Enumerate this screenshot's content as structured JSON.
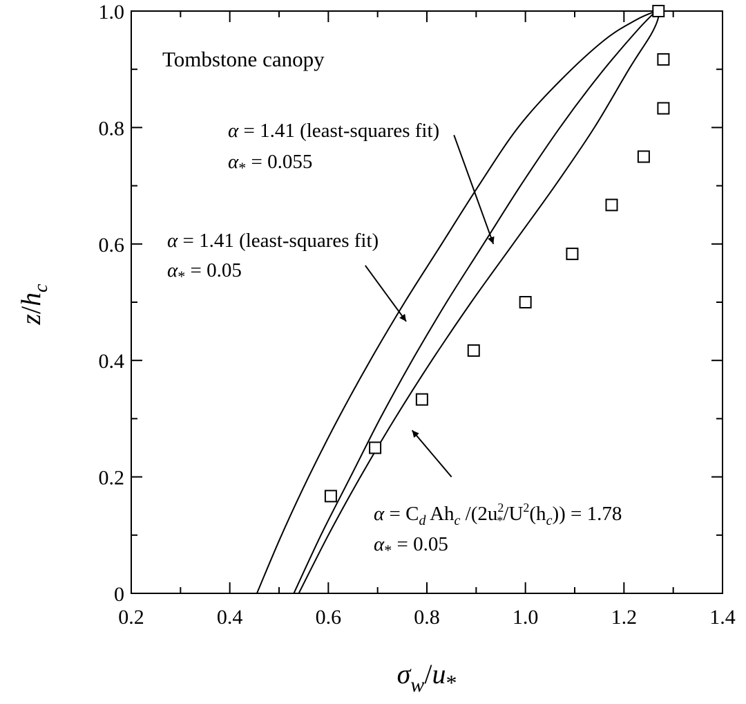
{
  "chart_data": {
    "type": "scatter",
    "title": "Tombstone canopy",
    "xlabel": {
      "main": "σ",
      "sub_w": "w",
      "sep": "/",
      "u": "u",
      "star": "*"
    },
    "ylabel": {
      "main": "z",
      "sep": "/",
      "h": "h",
      "sub": "c"
    },
    "xlim": [
      0.2,
      1.4
    ],
    "ylim": [
      0,
      1.0
    ],
    "xticks": [
      0.2,
      0.4,
      0.6,
      0.8,
      1.0,
      1.2,
      1.4
    ],
    "xtick_labels": [
      "0.2",
      "0.4",
      "0.6",
      "0.8",
      "1.0",
      "1.2",
      "1.4"
    ],
    "yticks": [
      0,
      0.2,
      0.4,
      0.6,
      0.8,
      1.0
    ],
    "ytick_labels": [
      "0",
      "0.2",
      "0.4",
      "0.6",
      "0.8",
      "1.0"
    ],
    "grid": false,
    "markers": {
      "x": [
        0.605,
        0.695,
        0.79,
        0.895,
        1.0,
        1.095,
        1.175,
        1.24,
        1.28,
        1.28,
        1.27
      ],
      "y": [
        0.167,
        0.25,
        0.333,
        0.417,
        0.5,
        0.583,
        0.667,
        0.75,
        0.833,
        0.917,
        1.0
      ]
    },
    "curves": [
      {
        "x": [
          0.455,
          0.505,
          0.56,
          0.62,
          0.685,
          0.755,
          0.83,
          0.905,
          0.985,
          1.07,
          1.16,
          1.225,
          1.265
        ],
        "y": [
          0.0,
          0.1,
          0.2,
          0.3,
          0.4,
          0.5,
          0.6,
          0.7,
          0.8,
          0.88,
          0.95,
          0.985,
          1.0
        ]
      },
      {
        "x": [
          0.53,
          0.585,
          0.645,
          0.705,
          0.77,
          0.84,
          0.915,
          0.99,
          1.07,
          1.15,
          1.225,
          1.265
        ],
        "y": [
          0.0,
          0.1,
          0.2,
          0.3,
          0.4,
          0.5,
          0.6,
          0.7,
          0.8,
          0.89,
          0.965,
          1.0
        ]
      },
      {
        "x": [
          0.54,
          0.6,
          0.665,
          0.735,
          0.81,
          0.89,
          0.975,
          1.06,
          1.14,
          1.21,
          1.255,
          1.27,
          1.265
        ],
        "y": [
          0.0,
          0.1,
          0.2,
          0.3,
          0.4,
          0.5,
          0.6,
          0.7,
          0.8,
          0.9,
          0.96,
          0.99,
          1.0
        ]
      }
    ],
    "annotations": [
      {
        "line1": {
          "sym": "α",
          "text": " = 1.41 (least-squares fit)"
        },
        "line2": {
          "sym": "α",
          "sub": "*",
          "text": " = 0.055"
        },
        "arrow_tail": [
          0.855,
          0.787
        ],
        "arrow_head": [
          0.935,
          0.6
        ]
      },
      {
        "line1": {
          "sym": "α",
          "text": " = 1.41 (least-squares fit)"
        },
        "line2": {
          "sym": "α",
          "sub": "*",
          "text": " = 0.05"
        },
        "arrow_tail": [
          0.675,
          0.563
        ],
        "arrow_head": [
          0.758,
          0.467
        ]
      },
      {
        "line1": {
          "sym": "α",
          "p1": " = C",
          "p1sub": "d",
          "p2": " Ah",
          "p2sub": "c",
          "p3": " /(2u",
          "p3sup": "2",
          "p3sub": "*",
          "p4": "/U",
          "p4sup": "2",
          "p5": "(h",
          "p5sub": "c",
          "p6": ")) = 1.78"
        },
        "line2": {
          "sym": "α",
          "sub": "*",
          "text": " = 0.05"
        },
        "arrow_tail": [
          0.85,
          0.2
        ],
        "arrow_head": [
          0.77,
          0.28
        ]
      }
    ]
  }
}
